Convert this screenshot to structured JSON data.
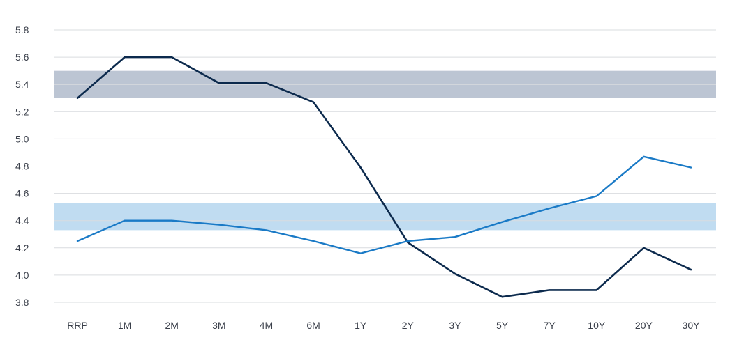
{
  "chart_data": {
    "type": "line",
    "title": "",
    "xlabel": "",
    "ylabel": "",
    "categories": [
      "RRP",
      "1M",
      "2M",
      "3M",
      "4M",
      "6M",
      "1Y",
      "2Y",
      "3Y",
      "5Y",
      "7Y",
      "10Y",
      "20Y",
      "30Y"
    ],
    "ylim": [
      3.8,
      5.8
    ],
    "yticks": [
      "5.8",
      "5.6",
      "5.4",
      "5.2",
      "5.0",
      "4.8",
      "4.6",
      "4.4",
      "4.2",
      "4.0",
      "3.8"
    ],
    "grid": true,
    "bands": [
      {
        "from": 5.3,
        "to": 5.5,
        "color": "#bcc5d3"
      },
      {
        "from": 4.33,
        "to": 4.53,
        "color": "#c0dcf1"
      }
    ],
    "series": [
      {
        "color": "#0c2a4d",
        "values": [
          5.3,
          5.6,
          5.6,
          5.41,
          5.41,
          5.27,
          4.79,
          4.24,
          4.01,
          3.84,
          3.89,
          3.89,
          4.2,
          4.04
        ]
      },
      {
        "color": "#1a7ac6",
        "values": [
          4.25,
          4.4,
          4.4,
          4.37,
          4.33,
          4.25,
          4.16,
          4.25,
          4.28,
          4.39,
          4.49,
          4.58,
          4.87,
          4.79
        ]
      }
    ]
  }
}
